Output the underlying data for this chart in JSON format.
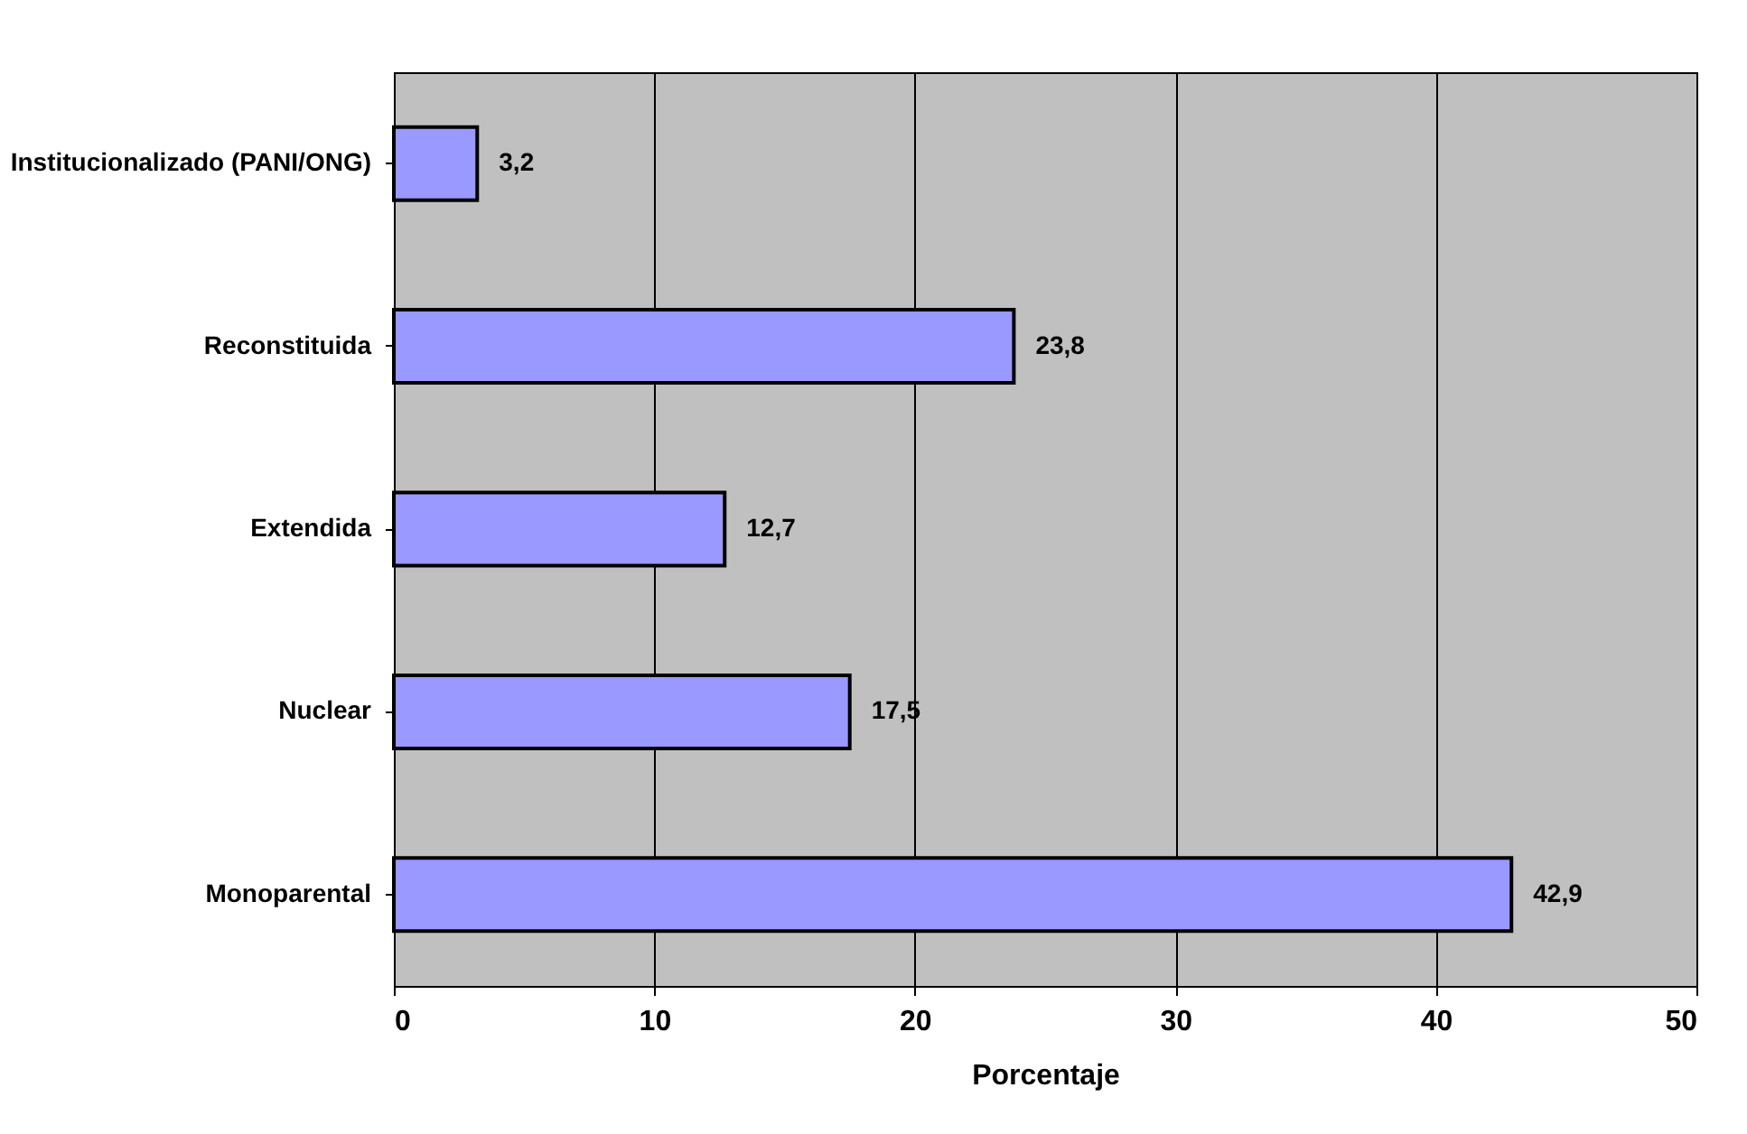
{
  "chart_data": {
    "type": "bar",
    "orientation": "horizontal",
    "xlabel": "Porcentaje",
    "categories": [
      "Institucionalizado (PANI/ONG)",
      "Reconstituida",
      "Extendida",
      "Nuclear",
      "Monoparental"
    ],
    "values": [
      3.2,
      23.8,
      12.7,
      17.5,
      42.9
    ],
    "value_labels": [
      "3,2",
      "23,8",
      "12,7",
      "17,5",
      "42,9"
    ],
    "color": "#9999ff",
    "xlim": [
      0,
      50
    ],
    "xticks": [
      0,
      10,
      20,
      30,
      40,
      50
    ],
    "grid": "x"
  }
}
